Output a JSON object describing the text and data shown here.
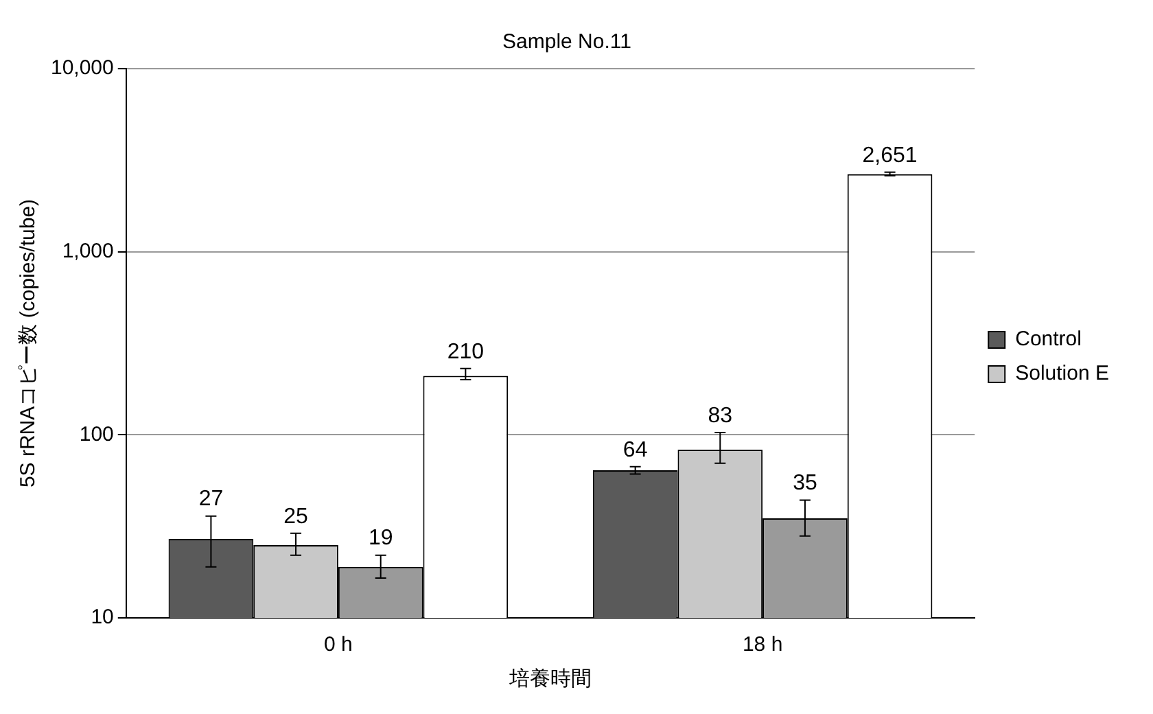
{
  "chart_data": {
    "type": "bar",
    "title": "Sample No.11",
    "xlabel": "培養時間",
    "ylabel": "5S rRNAコピー数 (copies/tube)",
    "categories": [
      "0 h",
      "18 h"
    ],
    "series": [
      {
        "name": "Control",
        "color": "#5a5a5a",
        "values": [
          27,
          64
        ],
        "errors": [
          [
            19,
            36
          ],
          [
            61,
            67
          ]
        ],
        "value_labels": [
          "27",
          "64"
        ]
      },
      {
        "name": "Solution E",
        "color": "#c8c8c8",
        "values": [
          25,
          83
        ],
        "errors": [
          [
            22,
            29
          ],
          [
            70,
            103
          ]
        ],
        "value_labels": [
          "25",
          "83"
        ]
      },
      {
        "color": "#9a9a9a",
        "values": [
          19,
          35
        ],
        "errors": [
          [
            16.5,
            22
          ],
          [
            28,
            44
          ]
        ],
        "value_labels": [
          "19",
          "35"
        ]
      },
      {
        "color": "#ffffff",
        "values": [
          210,
          2651
        ],
        "errors": [
          [
            200,
            230
          ],
          [
            2600,
            2720
          ]
        ],
        "value_labels": [
          "210",
          "2,651"
        ]
      }
    ],
    "log": "y",
    "ylim": [
      10,
      10000
    ],
    "yticks": [
      {
        "value": 10,
        "label": "10"
      },
      {
        "value": 100,
        "label": "100"
      },
      {
        "value": 1000,
        "label": "1,000"
      },
      {
        "value": 10000,
        "label": "10,000"
      }
    ],
    "grid": "y",
    "legend": "right"
  }
}
